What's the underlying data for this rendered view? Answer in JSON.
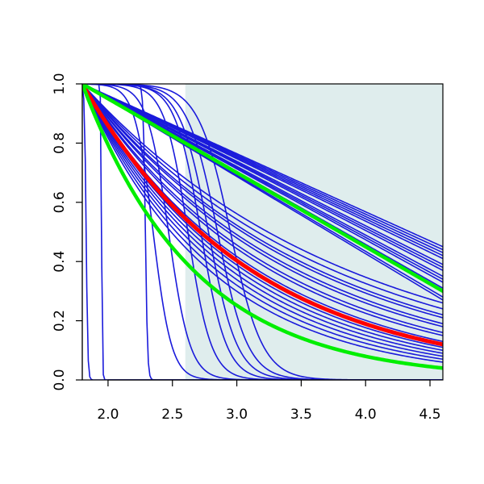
{
  "chart_data": {
    "type": "line",
    "title": "",
    "xlabel": "",
    "ylabel": "",
    "xlim": [
      1.8,
      4.6
    ],
    "ylim": [
      0.0,
      1.0
    ],
    "x_ticks": [
      2.0,
      2.5,
      3.0,
      3.5,
      4.0,
      4.5
    ],
    "x_tick_labels": [
      "2.0",
      "2.5",
      "3.0",
      "3.5",
      "4.0",
      "4.5"
    ],
    "y_ticks": [
      0.0,
      0.2,
      0.4,
      0.6,
      0.8,
      1.0
    ],
    "y_tick_labels": [
      "0.0",
      "0.2",
      "0.4",
      "0.6",
      "0.8",
      "1.0"
    ],
    "grid": false,
    "legend": "none",
    "shaded_region": {
      "x_from": 2.6,
      "x_to": 4.6,
      "color": "#dfeded"
    },
    "colors": {
      "blue": "#1a1adb",
      "red": "#ff0000",
      "green": "#00ee00",
      "shade": "#dfeded"
    },
    "x_start": 1.8,
    "blue_linear_curves": [
      {
        "end_value": 0.45
      },
      {
        "end_value": 0.44
      },
      {
        "end_value": 0.43
      },
      {
        "end_value": 0.42
      },
      {
        "end_value": 0.41
      },
      {
        "end_value": 0.39
      },
      {
        "end_value": 0.38
      },
      {
        "end_value": 0.37
      },
      {
        "end_value": 0.35
      },
      {
        "end_value": 0.34
      },
      {
        "end_value": 0.33
      },
      {
        "end_value": 0.31
      },
      {
        "end_value": 0.3
      },
      {
        "end_value": 0.28
      },
      {
        "end_value": 0.27
      }
    ],
    "blue_exponential_curves": [
      {
        "end_value": 0.26
      },
      {
        "end_value": 0.24
      },
      {
        "end_value": 0.22
      },
      {
        "end_value": 0.21
      },
      {
        "end_value": 0.19
      },
      {
        "end_value": 0.18
      },
      {
        "end_value": 0.16
      },
      {
        "end_value": 0.15
      },
      {
        "end_value": 0.13
      },
      {
        "end_value": 0.12
      },
      {
        "end_value": 0.11
      },
      {
        "end_value": 0.1
      },
      {
        "end_value": 0.09
      },
      {
        "end_value": 0.08
      },
      {
        "end_value": 0.07
      },
      {
        "end_value": 0.06
      }
    ],
    "blue_step_curves": [
      {
        "center": 1.83,
        "steepness": 160
      },
      {
        "center": 1.95,
        "steepness": 300
      },
      {
        "center": 2.29,
        "steepness": 120
      },
      {
        "center": 2.35,
        "steepness": 14
      },
      {
        "center": 2.47,
        "steepness": 12
      },
      {
        "center": 2.62,
        "steepness": 11
      },
      {
        "center": 2.72,
        "steepness": 10
      },
      {
        "center": 2.78,
        "steepness": 9
      },
      {
        "center": 2.85,
        "steepness": 8.5
      },
      {
        "center": 2.95,
        "steepness": 8
      }
    ],
    "red_curve": {
      "end_value": 0.12
    },
    "green_curves": [
      {
        "shape": "linear",
        "end_value": 0.3
      },
      {
        "shape": "exponential",
        "end_value": 0.04
      }
    ]
  }
}
